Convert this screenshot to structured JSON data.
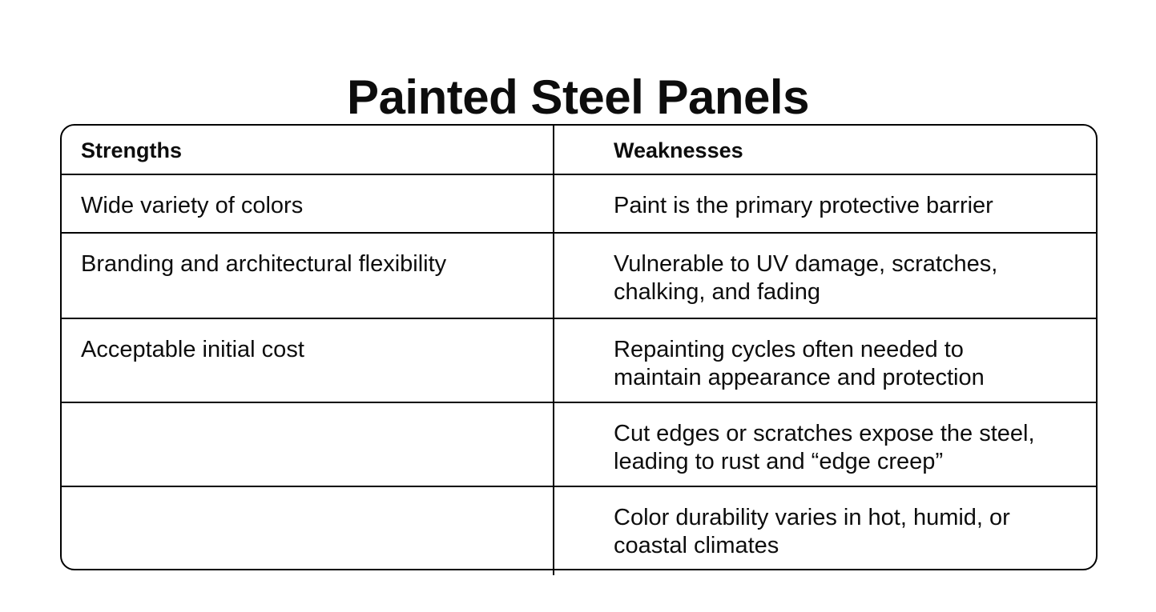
{
  "page": {
    "title": "Painted Steel Panels"
  },
  "colors": {
    "background": "#ffffff",
    "text": "#0d0d0d",
    "border": "#000000"
  },
  "table": {
    "columns": [
      {
        "label": "Strengths"
      },
      {
        "label": "Weaknesses"
      }
    ],
    "rows": [
      {
        "strengths": "Wide variety of colors",
        "weaknesses": "Paint is the primary protective barrier"
      },
      {
        "strengths": "Branding and architectural flexibility",
        "weaknesses": "Vulnerable to UV damage, scratches,\nchalking, and fading"
      },
      {
        "strengths": "Acceptable initial cost",
        "weaknesses": "Repainting cycles often needed to\nmaintain appearance and protection"
      },
      {
        "strengths": "",
        "weaknesses": "Cut edges or scratches expose the steel,\nleading to rust and “edge creep”"
      },
      {
        "strengths": "",
        "weaknesses": "Color durability varies in hot, humid, or\ncoastal climates"
      }
    ]
  }
}
